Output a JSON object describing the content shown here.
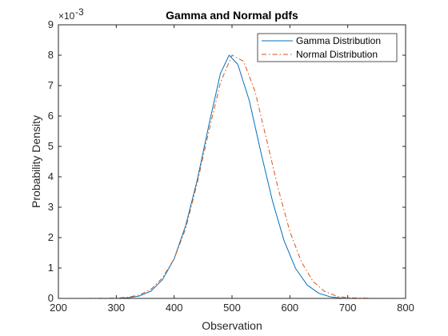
{
  "chart_data": {
    "type": "line",
    "title": "Gamma and Normal pdfs",
    "xlabel": "Observation",
    "ylabel": "Probability Density",
    "xlim": [
      200,
      800
    ],
    "ylim": [
      0,
      0.009
    ],
    "x_ticks": [
      "200",
      "300",
      "400",
      "500",
      "600",
      "700",
      "800"
    ],
    "y_ticks": [
      "0",
      "1",
      "2",
      "3",
      "4",
      "5",
      "6",
      "7",
      "8",
      "9"
    ],
    "y_exponent_base": "×10",
    "y_exponent": "-3",
    "legend_position": "top-right",
    "series": [
      {
        "name": "Gamma Distribution",
        "color": "#0072BD",
        "style": "solid",
        "x": [
          250,
          300,
          320,
          340,
          360,
          380,
          400,
          420,
          440,
          460,
          480,
          495,
          510,
          530,
          550,
          570,
          590,
          610,
          630,
          650,
          670,
          690,
          700
        ],
        "y": [
          0,
          0,
          2e-05,
          8e-05,
          0.00024,
          0.00062,
          0.0013,
          0.0024,
          0.0039,
          0.0057,
          0.0074,
          0.008,
          0.0077,
          0.0065,
          0.0048,
          0.0032,
          0.0019,
          0.00098,
          0.00044,
          0.00017,
          5e-05,
          1e-05,
          0
        ]
      },
      {
        "name": "Normal Distribution",
        "color": "#D95319",
        "style": "dashdot",
        "x": [
          250,
          300,
          320,
          340,
          360,
          380,
          400,
          420,
          440,
          460,
          480,
          500,
          520,
          540,
          560,
          580,
          600,
          620,
          640,
          660,
          680,
          700,
          750
        ],
        "y": [
          0,
          1e-05,
          4e-05,
          0.00011,
          0.0003,
          0.00068,
          0.0013,
          0.0023,
          0.0038,
          0.0055,
          0.0071,
          0.008,
          0.0078,
          0.0068,
          0.0052,
          0.0036,
          0.0022,
          0.0012,
          0.00056,
          0.00023,
          8e-05,
          2e-05,
          0
        ]
      }
    ]
  }
}
